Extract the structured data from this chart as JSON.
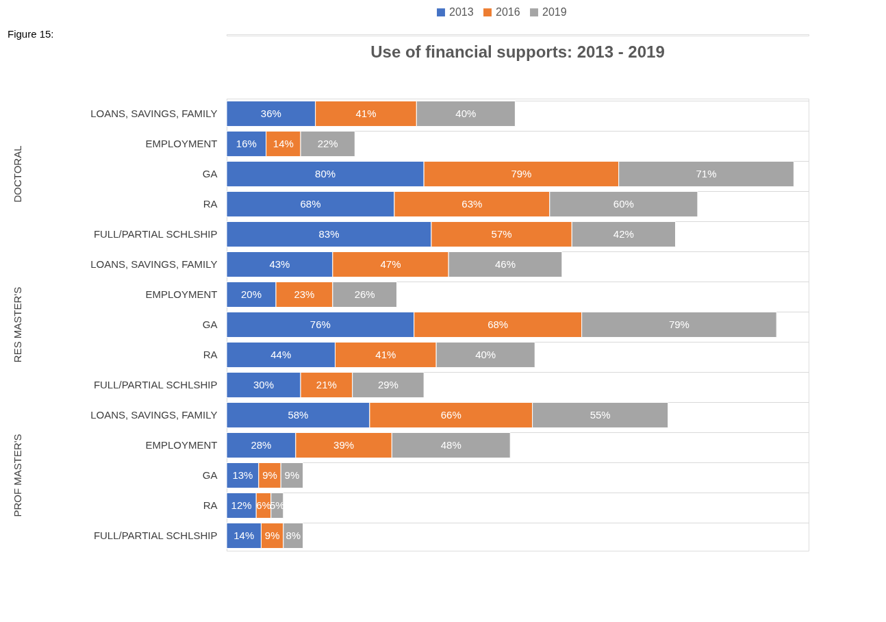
{
  "chart_data": {
    "type": "bar",
    "orientation": "horizontal",
    "stacked": true,
    "title": "Use of financial supports: 2013 - 2019",
    "categories": [
      "LOANS, SAVINGS, FAMILY",
      "EMPLOYMENT",
      "GA",
      "RA",
      "FULL/PARTIAL SCHLSHIP",
      "LOANS, SAVINGS, FAMILY",
      "EMPLOYMENT",
      "GA",
      "RA",
      "FULL/PARTIAL SCHLSHIP",
      "LOANS, SAVINGS, FAMILY",
      "EMPLOYMENT",
      "GA",
      "RA",
      "FULL/PARTIAL SCHLSHIP"
    ],
    "series": [
      {
        "name": "2013",
        "color": "#4472c4",
        "values": [
          36,
          16,
          80,
          68,
          83,
          43,
          20,
          76,
          44,
          30,
          58,
          28,
          13,
          12,
          14
        ],
        "value_labels": [
          "36%",
          "16%",
          "80%",
          "68%",
          "83%",
          "43%",
          "20%",
          "76%",
          "44%",
          "30%",
          "58%",
          "28%",
          "13%",
          "12%",
          "14%"
        ]
      },
      {
        "name": "2016",
        "color": "#ed7d31",
        "values": [
          41,
          14,
          79,
          63,
          57,
          47,
          23,
          68,
          41,
          21,
          66,
          39,
          9,
          6,
          9
        ],
        "value_labels": [
          "41%",
          "14%",
          "79%",
          "63%",
          "57%",
          "47%",
          "23%",
          "68%",
          "41%",
          "21%",
          "66%",
          "39%",
          "9%",
          "6%",
          "9%"
        ]
      },
      {
        "name": "2019",
        "color": "#a5a5a5",
        "values": [
          40,
          22,
          71,
          60,
          42,
          46,
          26,
          79,
          40,
          29,
          55,
          48,
          9,
          5,
          8
        ],
        "value_labels": [
          "40%",
          "22%",
          "71%",
          "60%",
          "42%",
          "46%",
          "26%",
          "79%",
          "40%",
          "29%",
          "55%",
          "48%",
          "9%",
          "5%",
          "8%"
        ]
      }
    ],
    "xlim": [
      0,
      236
    ],
    "grid": "y",
    "legend": "top",
    "tick_labels": "y",
    "annotations": [
      "Figure 15:",
      "DOCTORAL",
      "RES MASTER'S",
      "PROF MASTER'S"
    ]
  }
}
